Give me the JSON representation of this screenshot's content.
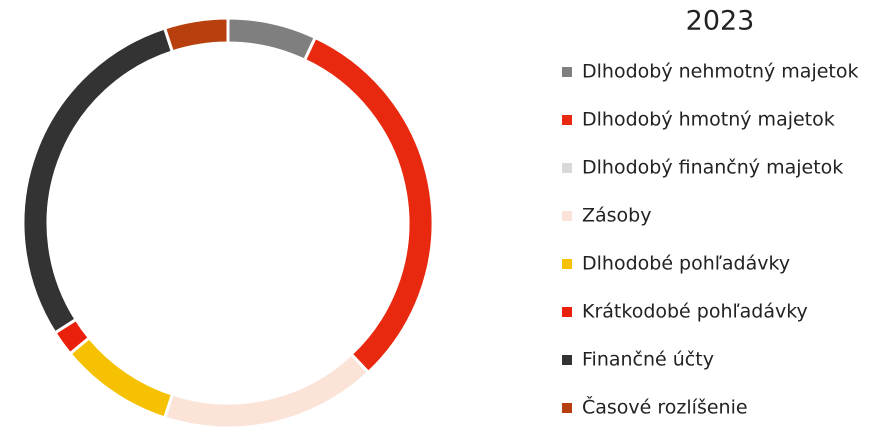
{
  "chart_data": {
    "type": "pie",
    "title": "2023",
    "categories": [
      "Dlhodobý nehmotný majetok",
      "Dlhodobý hmotný majetok",
      "Dlhodobý finančný majetok",
      "Zásoby",
      "Dlhodobé pohľadávky",
      "Krátkodobé pohľadávky",
      "Finančné účty",
      "Časové rozlíšenie"
    ],
    "values": [
      7,
      31,
      0,
      17,
      9,
      2,
      29,
      5
    ],
    "colors": [
      "#7f7f7f",
      "#e8290f",
      "#d9d9d9",
      "#fbe3d8",
      "#f5c100",
      "#e8200c",
      "#333333",
      "#b8400e"
    ],
    "legend": "right"
  }
}
